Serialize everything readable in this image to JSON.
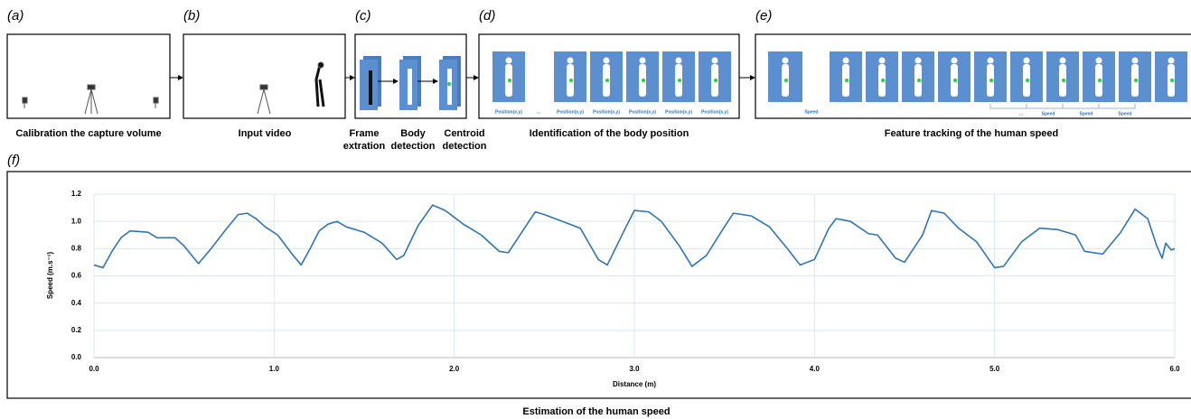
{
  "panels": [
    {
      "label": "(a)",
      "caption": "Calibration the capture volume"
    },
    {
      "label": "(b)",
      "caption": "Input video"
    },
    {
      "label": "(c)",
      "steps": [
        [
          "Frame",
          "extration"
        ],
        [
          "Body",
          "detection"
        ],
        [
          "Centroid",
          "detection"
        ]
      ]
    },
    {
      "label": "(d)",
      "caption": "Identification of the body position",
      "tile_labels": [
        "Position(x,y)",
        "...",
        "Position(x,y)",
        "Position(x,y)",
        "Position(x,y)",
        "Position(x,y)",
        "Position(x,y)"
      ]
    },
    {
      "label": "(e)",
      "caption": "Feature tracking of the human speed",
      "tile_labels": [
        "Speed",
        "...",
        "Speed",
        "Speed",
        "Speed"
      ]
    }
  ],
  "chart_data": {
    "type": "line",
    "panel_label": "(f)",
    "caption": "Estimation of the human speed",
    "x_label": "Distance (m)",
    "y_label": "Speed (m.s⁻¹)",
    "xlim": [
      0,
      6
    ],
    "ylim": [
      0,
      1.2
    ],
    "xticks": [
      {
        "value": 0,
        "label": "0.0"
      },
      {
        "value": 1,
        "label": "1.0"
      },
      {
        "value": 2,
        "label": "2.0"
      },
      {
        "value": 3,
        "label": "3.0"
      },
      {
        "value": 4,
        "label": "4.0"
      },
      {
        "value": 5,
        "label": "5.0"
      },
      {
        "value": 6,
        "label": "6.0"
      }
    ],
    "yticks": [
      {
        "value": 0,
        "label": "0.0"
      },
      0.2,
      0.4,
      0.6,
      0.8,
      {
        "value": 1,
        "label": "1.0"
      },
      1.2
    ],
    "grid": true,
    "color": "#2e75b6",
    "x": [
      0,
      0.05,
      0.1,
      0.15,
      0.2,
      0.3,
      0.35,
      0.45,
      0.5,
      0.58,
      0.65,
      0.72,
      0.8,
      0.85,
      0.9,
      0.95,
      1.02,
      1.1,
      1.15,
      1.2,
      1.25,
      1.3,
      1.35,
      1.4,
      1.5,
      1.6,
      1.68,
      1.72,
      1.8,
      1.88,
      1.95,
      2.05,
      2.15,
      2.25,
      2.3,
      2.38,
      2.45,
      2.5,
      2.6,
      2.7,
      2.8,
      2.85,
      2.95,
      3.0,
      3.08,
      3.15,
      3.25,
      3.32,
      3.4,
      3.5,
      3.55,
      3.65,
      3.75,
      3.85,
      3.92,
      4.0,
      4.08,
      4.12,
      4.2,
      4.3,
      4.35,
      4.45,
      4.5,
      4.6,
      4.65,
      4.72,
      4.8,
      4.9,
      5.0,
      5.05,
      5.15,
      5.25,
      5.35,
      5.45,
      5.5,
      5.6,
      5.7,
      5.78,
      5.85,
      5.9,
      5.93,
      5.95,
      5.98,
      6.0
    ],
    "values": [
      0.68,
      0.66,
      0.78,
      0.88,
      0.93,
      0.92,
      0.88,
      0.88,
      0.82,
      0.69,
      0.8,
      0.92,
      1.05,
      1.06,
      1.02,
      0.96,
      0.9,
      0.76,
      0.68,
      0.8,
      0.93,
      0.98,
      1.0,
      0.96,
      0.92,
      0.84,
      0.72,
      0.75,
      0.97,
      1.12,
      1.08,
      0.98,
      0.9,
      0.78,
      0.77,
      0.93,
      1.07,
      1.05,
      1.0,
      0.95,
      0.72,
      0.68,
      0.95,
      1.08,
      1.07,
      1.0,
      0.82,
      0.67,
      0.75,
      0.96,
      1.06,
      1.04,
      0.96,
      0.8,
      0.68,
      0.72,
      0.95,
      1.02,
      1.0,
      0.91,
      0.9,
      0.73,
      0.7,
      0.9,
      1.08,
      1.06,
      0.95,
      0.85,
      0.66,
      0.67,
      0.85,
      0.95,
      0.94,
      0.9,
      0.78,
      0.76,
      0.92,
      1.09,
      1.02,
      0.82,
      0.73,
      0.84,
      0.79,
      0.8
    ]
  }
}
